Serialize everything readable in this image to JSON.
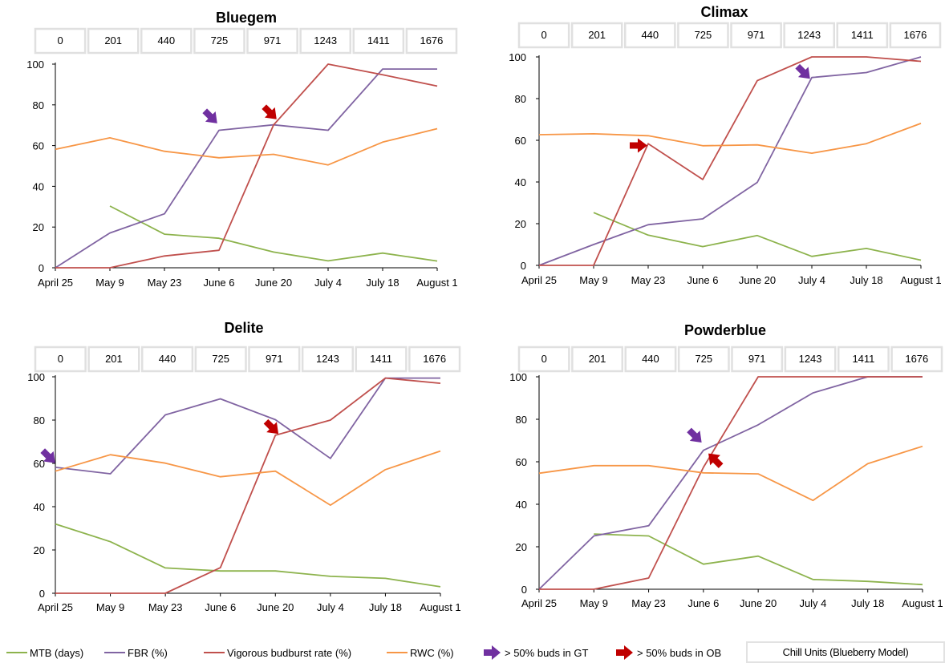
{
  "chart_data": [
    {
      "type": "line",
      "title": "Bluegem",
      "categories": [
        "April 25",
        "May 9",
        "May 23",
        "June 6",
        "June 20",
        "July 4",
        "July 18",
        "August 1"
      ],
      "chill_units": [
        "0",
        "201",
        "440",
        "725",
        "971",
        "1243",
        "1411",
        "1676"
      ],
      "ylim": [
        0,
        100
      ],
      "yticks": [
        0,
        20,
        40,
        60,
        80,
        100
      ],
      "series": [
        {
          "name": "MTB (days)",
          "color": "#8db34d",
          "values": [
            null,
            30.3,
            16.5,
            14.5,
            7.7,
            3.4,
            7.2,
            3.3
          ]
        },
        {
          "name": "FBR (%)",
          "color": "#8064a2",
          "values": [
            0,
            17.1,
            26.5,
            67.5,
            70.2,
            67.5,
            97.6,
            97.6
          ]
        },
        {
          "name": "Vigorous budburst rate (%)",
          "color": "#c0504d",
          "values": [
            0,
            0,
            5.8,
            8.6,
            70.1,
            100,
            94.8,
            89.2
          ]
        },
        {
          "name": "RWC (%)",
          "color": "#f79646",
          "values": [
            58.2,
            63.8,
            57.2,
            54,
            55.7,
            50.5,
            61.7,
            68.3
          ]
        }
      ],
      "markers": [
        {
          "type": "GT",
          "category": "June 6",
          "value": 74
        },
        {
          "type": "OB",
          "category": "June 20",
          "value": 76
        }
      ]
    },
    {
      "type": "line",
      "title": "Climax",
      "categories": [
        "April 25",
        "May 9",
        "May 23",
        "June 6",
        "June 20",
        "July 4",
        "July 18",
        "August 1"
      ],
      "chill_units": [
        "0",
        "201",
        "440",
        "725",
        "971",
        "1243",
        "1411",
        "1676"
      ],
      "ylim": [
        0,
        100
      ],
      "yticks": [
        0,
        20,
        40,
        60,
        80,
        100
      ],
      "series": [
        {
          "name": "MTB (days)",
          "color": "#8db34d",
          "values": [
            null,
            25.3,
            14.5,
            9,
            14.3,
            4.3,
            8.1,
            2.5
          ]
        },
        {
          "name": "FBR (%)",
          "color": "#8064a2",
          "values": [
            0,
            10,
            19.5,
            22.3,
            39.8,
            90.1,
            92.5,
            100
          ]
        },
        {
          "name": "Vigorous budburst rate (%)",
          "color": "#c0504d",
          "values": [
            0,
            0,
            58.4,
            41.2,
            88.6,
            100,
            100,
            97.9
          ]
        },
        {
          "name": "RWC (%)",
          "color": "#f79646",
          "values": [
            62.7,
            63.1,
            62.2,
            57.4,
            57.8,
            53.8,
            58.4,
            68.1
          ]
        }
      ],
      "markers": [
        {
          "type": "OB",
          "category": "May 23",
          "value": 57.5
        },
        {
          "type": "GT",
          "category": "July 4",
          "value": 92.5
        }
      ]
    },
    {
      "type": "line",
      "title": "Delite",
      "categories": [
        "April 25",
        "May 9",
        "May 23",
        "June 6",
        "June 20",
        "July 4",
        "July 18",
        "August 1"
      ],
      "chill_units": [
        "0",
        "201",
        "440",
        "725",
        "971",
        "1243",
        "1411",
        "1676"
      ],
      "ylim": [
        0,
        100
      ],
      "yticks": [
        0,
        20,
        40,
        60,
        80,
        100
      ],
      "series": [
        {
          "name": "MTB (days)",
          "color": "#8db34d",
          "values": [
            32,
            23.8,
            11.7,
            10.3,
            10.3,
            7.8,
            6.9,
            3
          ]
        },
        {
          "name": "FBR (%)",
          "color": "#8064a2",
          "values": [
            58.2,
            55.2,
            82.4,
            89.8,
            80.2,
            62.3,
            99.4,
            99.4
          ]
        },
        {
          "name": "Vigorous budburst rate (%)",
          "color": "#c0504d",
          "values": [
            0,
            0,
            0,
            11.8,
            73,
            80,
            99.4,
            97
          ]
        },
        {
          "name": "RWC (%)",
          "color": "#f79646",
          "values": [
            56.4,
            64,
            60.1,
            53.8,
            56.4,
            40.7,
            57.1,
            65.7
          ]
        }
      ],
      "markers": [
        {
          "type": "GT",
          "category": "April 25",
          "value": 63
        },
        {
          "type": "OB",
          "category": "June 20",
          "value": 76.5
        }
      ]
    },
    {
      "type": "line",
      "title": "Powderblue",
      "categories": [
        "April 25",
        "May 9",
        "May 23",
        "June 6",
        "June 20",
        "July 4",
        "July 18",
        "August 1"
      ],
      "chill_units": [
        "0",
        "201",
        "440",
        "725",
        "971",
        "1243",
        "1411",
        "1676"
      ],
      "ylim": [
        0,
        100
      ],
      "yticks": [
        0,
        20,
        40,
        60,
        80,
        100
      ],
      "series": [
        {
          "name": "MTB (days)",
          "color": "#8db34d",
          "values": [
            null,
            26,
            25.1,
            11.8,
            15.6,
            4.6,
            3.7,
            2.2
          ]
        },
        {
          "name": "FBR (%)",
          "color": "#8064a2",
          "values": [
            0,
            25.1,
            29.9,
            65.4,
            77.4,
            92.4,
            100,
            100
          ]
        },
        {
          "name": "Vigorous budburst rate (%)",
          "color": "#c0504d",
          "values": [
            0,
            0,
            5.3,
            57.4,
            100,
            100,
            100,
            100
          ]
        },
        {
          "name": "RWC (%)",
          "color": "#f79646",
          "values": [
            54.6,
            58.2,
            58.2,
            54.8,
            54.3,
            41.8,
            59.1,
            67.3
          ]
        }
      ],
      "markers": [
        {
          "type": "GT",
          "category": "June 6",
          "value": 72
        },
        {
          "type": "OB",
          "category": "June 6",
          "value": 61
        }
      ]
    }
  ],
  "legend": {
    "items": [
      {
        "label": "MTB (days)",
        "color": "#8db34d",
        "kind": "line"
      },
      {
        "label": "FBR (%)",
        "color": "#8064a2",
        "kind": "line"
      },
      {
        "label": "Vigorous budburst rate (%)",
        "color": "#c0504d",
        "kind": "line"
      },
      {
        "label": "RWC (%)",
        "color": "#f79646",
        "kind": "line"
      },
      {
        "label": "> 50% buds in GT",
        "color": "#7030a0",
        "kind": "arrow"
      },
      {
        "label": "> 50% buds in OB",
        "color": "#c00000",
        "kind": "arrow"
      }
    ],
    "chill_label": "Chill Units (Blueberry Model)"
  },
  "colors": {
    "gt_arrow": "#7030a0",
    "ob_arrow": "#c00000",
    "chill_box_border": "#e0e0e0"
  }
}
